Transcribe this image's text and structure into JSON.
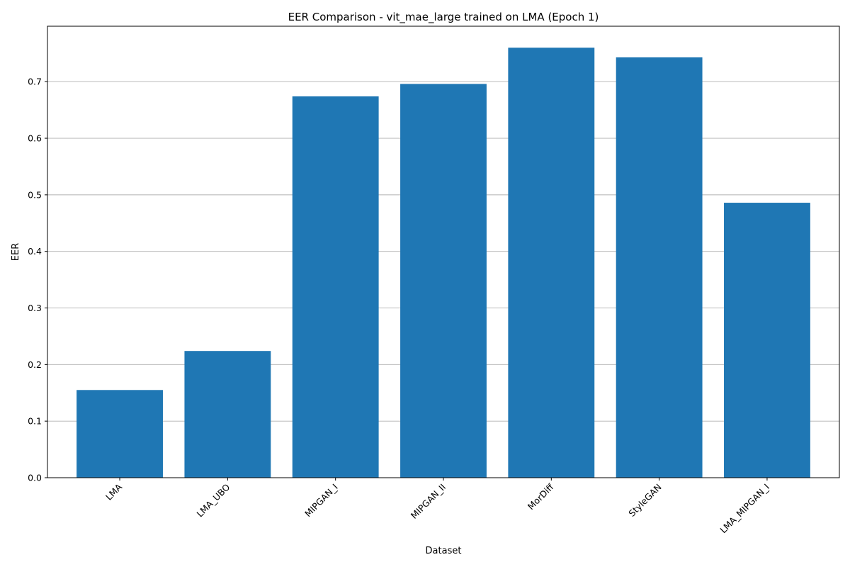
{
  "chart_data": {
    "type": "bar",
    "title": "EER Comparison - vit_mae_large trained on LMA (Epoch 1)",
    "xlabel": "Dataset",
    "ylabel": "EER",
    "categories": [
      "LMA",
      "LMA_UBO",
      "MIPGAN_I",
      "MIPGAN_II",
      "MorDiff",
      "StyleGAN",
      "LMA_MIPGAN_I"
    ],
    "values": [
      0.155,
      0.224,
      0.674,
      0.696,
      0.76,
      0.743,
      0.486
    ],
    "ylim": [
      0,
      0.798
    ],
    "yticks": [
      "0.0",
      "0.1",
      "0.2",
      "0.3",
      "0.4",
      "0.5",
      "0.6",
      "0.7"
    ],
    "grid": "y",
    "bar_color": "#1f77b4",
    "x_tick_rotation_deg": 45
  }
}
